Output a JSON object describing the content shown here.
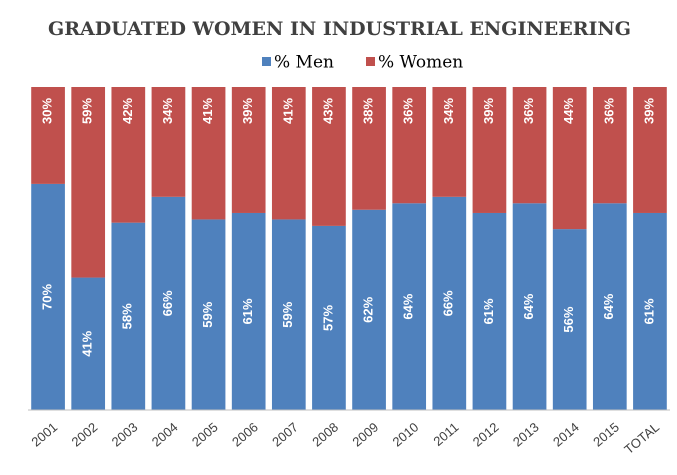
{
  "chart_data": {
    "type": "stacked_bar_100",
    "title": "GRADUATED WOMEN IN INDUSTRIAL ENGINEERING",
    "categories": [
      "2001",
      "2002",
      "2003",
      "2004",
      "2005",
      "2006",
      "2007",
      "2008",
      "2009",
      "2010",
      "2011",
      "2012",
      "2013",
      "2014",
      "2015",
      "TOTAL"
    ],
    "series": [
      {
        "name": "% Men",
        "color": "#4f81bd",
        "values": [
          70,
          41,
          58,
          66,
          59,
          61,
          59,
          57,
          62,
          64,
          66,
          61,
          64,
          56,
          64,
          61
        ],
        "value_labels": [
          "70%",
          "41%",
          "58%",
          "66%",
          "59%",
          "61%",
          "59%",
          "57%",
          "62%",
          "64%",
          "66%",
          "61%",
          "64%",
          "56%",
          "64%",
          "61%"
        ]
      },
      {
        "name": "% Women",
        "color": "#c0504d",
        "values": [
          30,
          59,
          42,
          34,
          41,
          39,
          41,
          43,
          38,
          36,
          34,
          39,
          36,
          44,
          36,
          39
        ],
        "value_labels": [
          "30%",
          "59%",
          "42%",
          "34%",
          "41%",
          "39%",
          "41%",
          "43%",
          "38%",
          "36%",
          "34%",
          "39%",
          "36%",
          "44%",
          "36%",
          "39%"
        ]
      }
    ],
    "ylim": [
      0,
      100
    ]
  }
}
